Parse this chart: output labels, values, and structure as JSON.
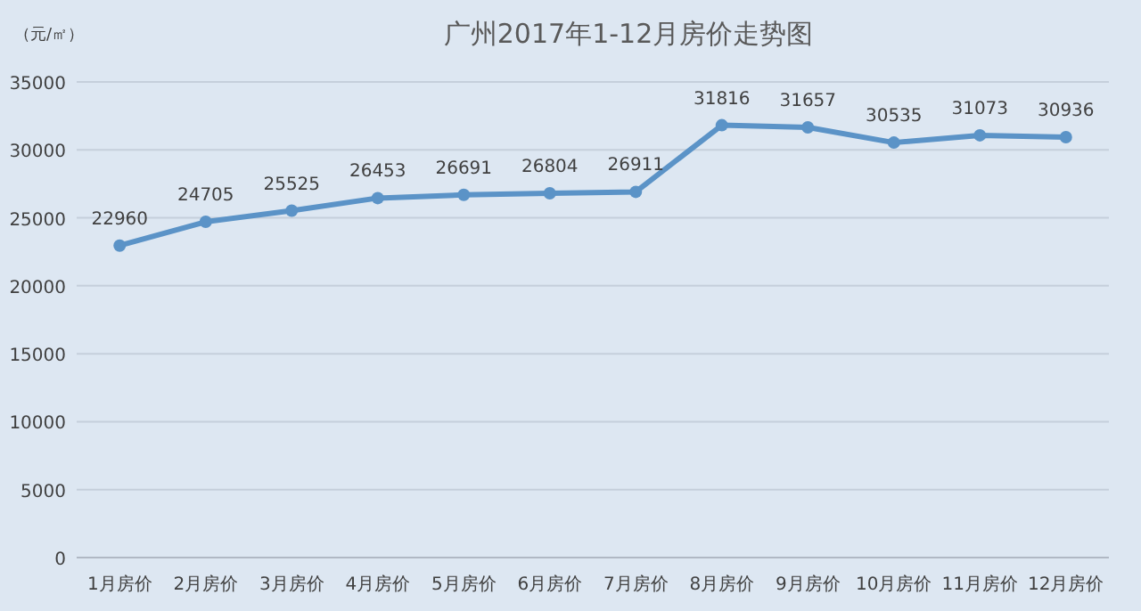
{
  "chart_data": {
    "type": "line",
    "title": "广州2017年1-12月房价走势图",
    "ylabel": "（元/㎡）",
    "categories": [
      "1月房价",
      "2月房价",
      "3月房价",
      "4月房价",
      "5月房价",
      "6月房价",
      "7月房价",
      "8月房价",
      "9月房价",
      "10月房价",
      "11月房价",
      "12月房价"
    ],
    "series": [
      {
        "color": "#5b93c7",
        "values": [
          22960,
          24705,
          25525,
          26453,
          26691,
          26804,
          26911,
          31816,
          31657,
          30535,
          31073,
          30936
        ]
      }
    ],
    "ylim": [
      0,
      35000
    ],
    "yticks": [
      0,
      5000,
      10000,
      15000,
      20000,
      25000,
      30000,
      35000
    ],
    "grid": "y",
    "data_labels": true,
    "marker": "circle",
    "line_style": "solid"
  }
}
